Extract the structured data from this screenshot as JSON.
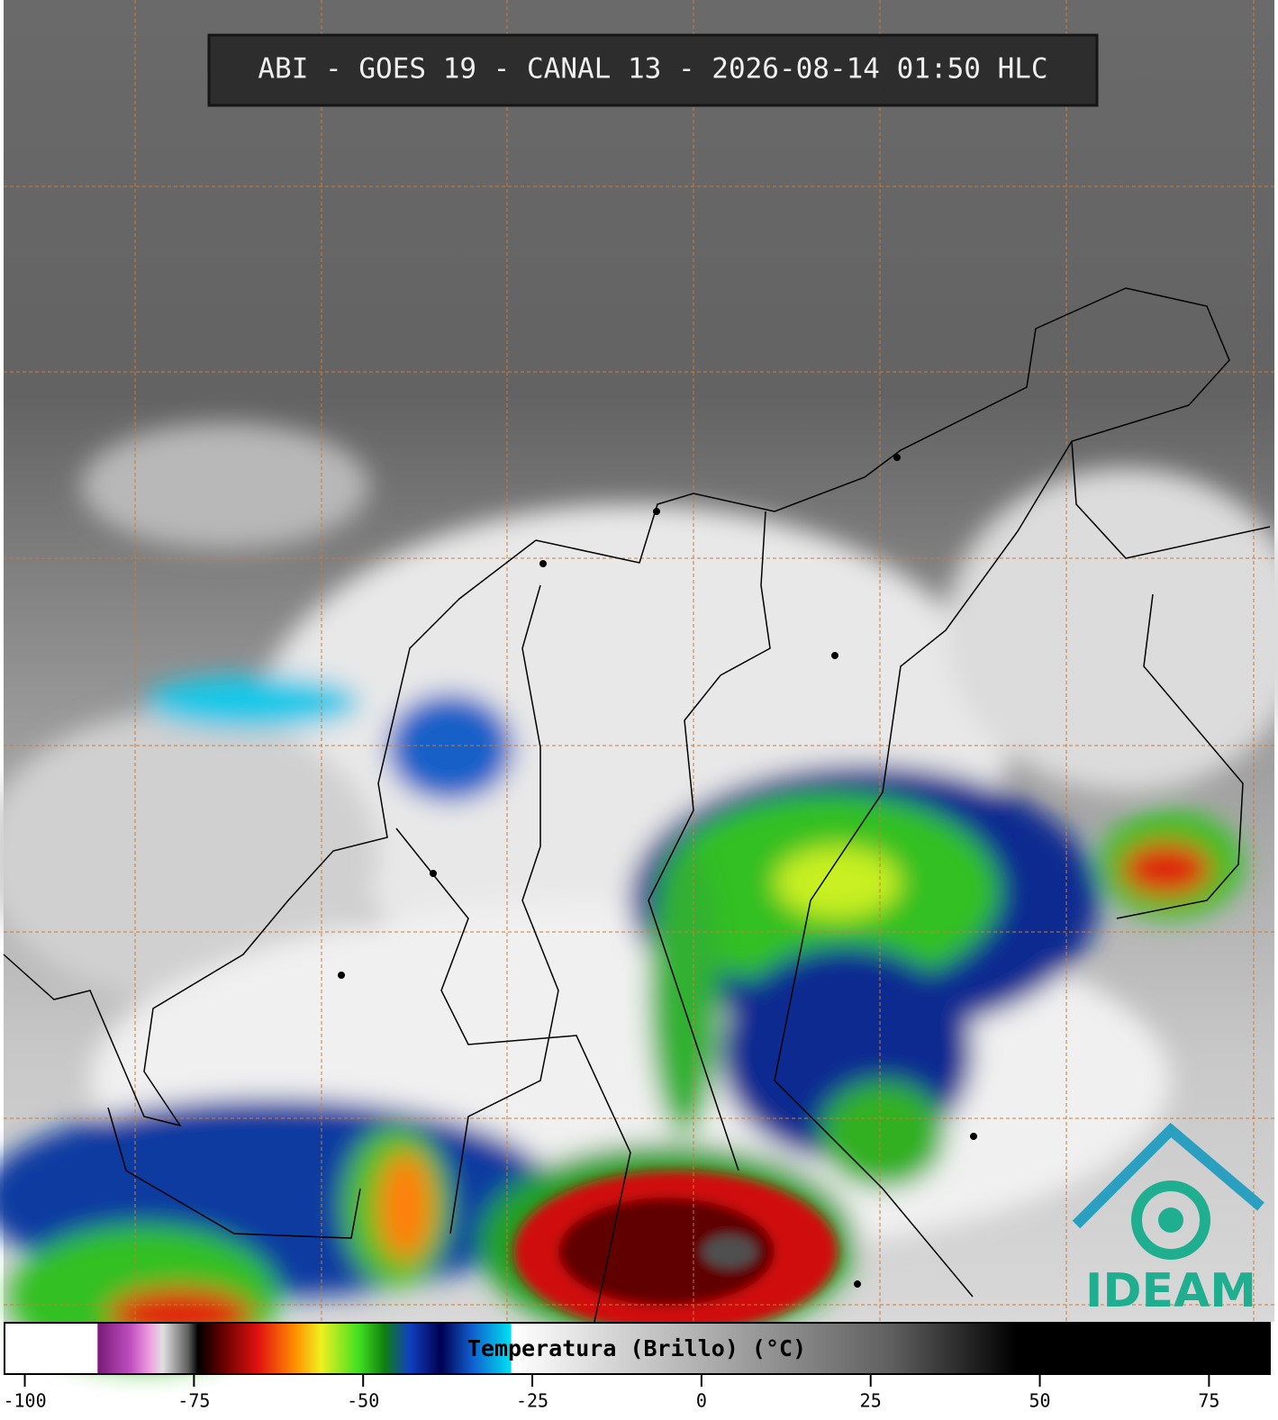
{
  "title": "ABI - GOES 19 - CANAL 13 - 2026-08-14 01:50 HLC",
  "logo": "IDEAM",
  "colorbar": {
    "label": "Temperatura (Brillo) (°C)",
    "lim": [
      -103,
      84
    ],
    "ticks": [
      -100,
      -75,
      -50,
      -25,
      0,
      25,
      50,
      75
    ]
  }
}
